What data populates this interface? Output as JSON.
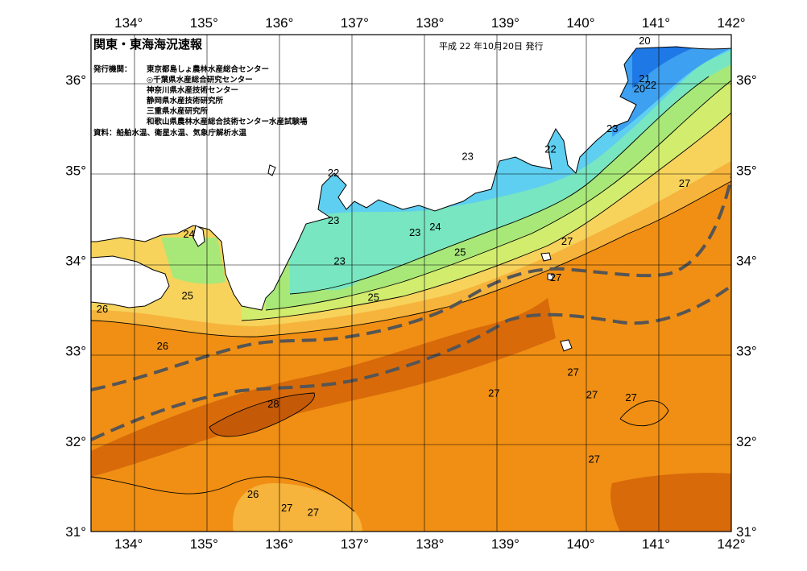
{
  "title": "関東・東海海況速報",
  "issued": "平成 22 年10月20日 発行",
  "agencies_label": "発行機関：",
  "agencies": [
    "東京都島しょ農林水産総合センター",
    "◎千葉県水産総合研究センター",
    "神奈川県水産技術センター",
    "静岡県水産技術研究所",
    "三重県水産研究所",
    "和歌山県農林水産総合技術センター水産試験場"
  ],
  "source": "資料：船舶水温、衛星水温、気象庁解析水温",
  "longitude_labels": [
    "134°",
    "135°",
    "136°",
    "137°",
    "138°",
    "139°",
    "140°",
    "141°",
    "142°"
  ],
  "latitude_labels": [
    "31°",
    "32°",
    "33°",
    "34°",
    "35°",
    "36°"
  ],
  "isotherm_labels": [
    {
      "text": "20",
      "lon": 140.85,
      "lat": 36.42
    },
    {
      "text": "21",
      "lon": 140.85,
      "lat": 36.0
    },
    {
      "text": "20",
      "lon": 140.78,
      "lat": 35.89
    },
    {
      "text": "22",
      "lon": 140.93,
      "lat": 35.93
    },
    {
      "text": "23",
      "lon": 140.42,
      "lat": 35.45
    },
    {
      "text": "22",
      "lon": 139.6,
      "lat": 35.22
    },
    {
      "text": "23",
      "lon": 138.5,
      "lat": 35.14
    },
    {
      "text": "22",
      "lon": 136.72,
      "lat": 34.96
    },
    {
      "text": "27",
      "lon": 141.38,
      "lat": 34.84
    },
    {
      "text": "23",
      "lon": 136.72,
      "lat": 34.43
    },
    {
      "text": "24",
      "lon": 134.8,
      "lat": 34.28
    },
    {
      "text": "23",
      "lon": 137.8,
      "lat": 34.3
    },
    {
      "text": "24",
      "lon": 138.07,
      "lat": 34.36
    },
    {
      "text": "25",
      "lon": 138.4,
      "lat": 34.08
    },
    {
      "text": "27",
      "lon": 139.82,
      "lat": 34.2
    },
    {
      "text": "23",
      "lon": 136.8,
      "lat": 33.98
    },
    {
      "text": "27",
      "lon": 139.67,
      "lat": 33.8
    },
    {
      "text": "25",
      "lon": 134.78,
      "lat": 33.6
    },
    {
      "text": "25",
      "lon": 137.25,
      "lat": 33.58
    },
    {
      "text": "26",
      "lon": 133.65,
      "lat": 33.45
    },
    {
      "text": "26",
      "lon": 134.45,
      "lat": 33.04
    },
    {
      "text": "27",
      "lon": 139.9,
      "lat": 32.75
    },
    {
      "text": "27",
      "lon": 138.85,
      "lat": 32.52
    },
    {
      "text": "27",
      "lon": 140.15,
      "lat": 32.5
    },
    {
      "text": "27",
      "lon": 140.67,
      "lat": 32.47
    },
    {
      "text": "28",
      "lon": 135.92,
      "lat": 32.4
    },
    {
      "text": "27",
      "lon": 140.18,
      "lat": 31.79
    },
    {
      "text": "26",
      "lon": 135.65,
      "lat": 31.4
    },
    {
      "text": "27",
      "lon": 136.1,
      "lat": 31.25
    },
    {
      "text": "27",
      "lon": 136.45,
      "lat": 31.2
    }
  ],
  "temperature_colors": {
    "t20": "#1e78e6",
    "t21": "#3ea0f0",
    "t22": "#5ecff0",
    "t23": "#78e6c0",
    "t24": "#a8e878",
    "t25": "#d2ec6e",
    "t26": "#f7d35c",
    "t26b": "#f6b43c",
    "t27": "#f08f14",
    "t28": "#d86a0a",
    "t29": "#c45a08",
    "land": "#ffffff",
    "kuroshio_line": "#555555"
  }
}
